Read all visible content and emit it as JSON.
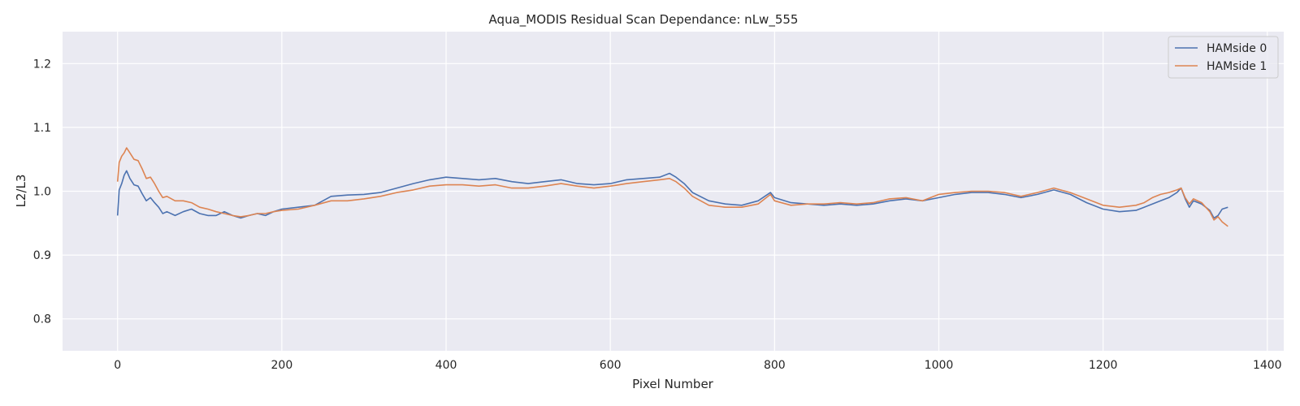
{
  "chart_data": {
    "type": "line",
    "title": "Aqua_MODIS Residual Scan Dependance: nLw_555",
    "xlabel": "Pixel Number",
    "ylabel": "L2/L3",
    "xlim": [
      -67,
      1420
    ],
    "ylim": [
      0.75,
      1.25
    ],
    "xticks": [
      0,
      200,
      400,
      600,
      800,
      1000,
      1200,
      1400
    ],
    "xtick_labels": [
      "0",
      "200",
      "400",
      "600",
      "800",
      "1000",
      "1200",
      "1400"
    ],
    "yticks": [
      0.8,
      0.9,
      1.0,
      1.1,
      1.2
    ],
    "ytick_labels": [
      "0.8",
      "0.9",
      "1.0",
      "1.1",
      "1.2"
    ],
    "grid": true,
    "legend_position": "top-right",
    "series": [
      {
        "name": "HAMside 0",
        "color": "#4c72b0",
        "x": [
          0,
          2,
          5,
          8,
          11,
          15,
          20,
          25,
          30,
          35,
          40,
          45,
          50,
          55,
          60,
          70,
          80,
          90,
          100,
          110,
          120,
          130,
          140,
          150,
          160,
          170,
          180,
          190,
          200,
          220,
          240,
          260,
          280,
          300,
          320,
          340,
          360,
          380,
          400,
          420,
          440,
          460,
          480,
          500,
          520,
          540,
          560,
          580,
          600,
          620,
          640,
          660,
          672,
          680,
          690,
          700,
          720,
          740,
          760,
          780,
          795,
          800,
          820,
          840,
          860,
          880,
          900,
          920,
          940,
          960,
          980,
          1000,
          1020,
          1040,
          1060,
          1080,
          1100,
          1120,
          1140,
          1160,
          1180,
          1200,
          1220,
          1240,
          1250,
          1260,
          1270,
          1280,
          1290,
          1295,
          1300,
          1305,
          1310,
          1320,
          1330,
          1335,
          1340,
          1345,
          1352
        ],
        "y": [
          0.962,
          1.002,
          1.012,
          1.025,
          1.032,
          1.02,
          1.01,
          1.008,
          0.996,
          0.985,
          0.99,
          0.982,
          0.975,
          0.965,
          0.968,
          0.962,
          0.968,
          0.972,
          0.965,
          0.962,
          0.962,
          0.968,
          0.962,
          0.958,
          0.962,
          0.965,
          0.962,
          0.968,
          0.972,
          0.975,
          0.978,
          0.992,
          0.994,
          0.995,
          0.998,
          1.005,
          1.012,
          1.018,
          1.022,
          1.02,
          1.018,
          1.02,
          1.015,
          1.012,
          1.015,
          1.018,
          1.012,
          1.01,
          1.012,
          1.018,
          1.02,
          1.022,
          1.028,
          1.022,
          1.012,
          0.998,
          0.985,
          0.98,
          0.978,
          0.985,
          0.998,
          0.99,
          0.982,
          0.98,
          0.978,
          0.98,
          0.978,
          0.98,
          0.985,
          0.988,
          0.985,
          0.99,
          0.995,
          0.998,
          0.998,
          0.995,
          0.99,
          0.995,
          1.002,
          0.995,
          0.982,
          0.972,
          0.968,
          0.97,
          0.975,
          0.98,
          0.985,
          0.99,
          0.998,
          1.005,
          0.988,
          0.975,
          0.985,
          0.98,
          0.97,
          0.958,
          0.962,
          0.972,
          0.975
        ]
      },
      {
        "name": "HAMside 1",
        "color": "#dd8452",
        "x": [
          0,
          2,
          5,
          8,
          11,
          15,
          20,
          25,
          30,
          35,
          40,
          45,
          50,
          55,
          60,
          70,
          80,
          90,
          100,
          110,
          120,
          130,
          140,
          150,
          160,
          170,
          180,
          190,
          200,
          220,
          240,
          260,
          280,
          300,
          320,
          340,
          360,
          380,
          400,
          420,
          440,
          460,
          480,
          500,
          520,
          540,
          560,
          580,
          600,
          620,
          640,
          660,
          672,
          680,
          690,
          700,
          720,
          740,
          760,
          780,
          795,
          800,
          820,
          840,
          860,
          880,
          900,
          920,
          940,
          960,
          980,
          1000,
          1020,
          1040,
          1060,
          1080,
          1100,
          1120,
          1140,
          1160,
          1180,
          1200,
          1220,
          1240,
          1250,
          1260,
          1270,
          1280,
          1290,
          1295,
          1300,
          1305,
          1310,
          1320,
          1330,
          1335,
          1340,
          1345,
          1352
        ],
        "y": [
          1.015,
          1.045,
          1.055,
          1.06,
          1.068,
          1.06,
          1.05,
          1.048,
          1.035,
          1.02,
          1.022,
          1.012,
          1.0,
          0.99,
          0.992,
          0.985,
          0.985,
          0.982,
          0.975,
          0.972,
          0.968,
          0.965,
          0.962,
          0.96,
          0.962,
          0.965,
          0.965,
          0.968,
          0.97,
          0.972,
          0.978,
          0.985,
          0.985,
          0.988,
          0.992,
          0.998,
          1.002,
          1.008,
          1.01,
          1.01,
          1.008,
          1.01,
          1.005,
          1.005,
          1.008,
          1.012,
          1.008,
          1.005,
          1.008,
          1.012,
          1.015,
          1.018,
          1.02,
          1.015,
          1.005,
          0.992,
          0.978,
          0.975,
          0.975,
          0.98,
          0.995,
          0.985,
          0.978,
          0.98,
          0.98,
          0.982,
          0.98,
          0.982,
          0.988,
          0.99,
          0.985,
          0.995,
          0.998,
          1.0,
          1.0,
          0.998,
          0.992,
          0.998,
          1.005,
          0.998,
          0.988,
          0.978,
          0.975,
          0.978,
          0.982,
          0.99,
          0.995,
          0.998,
          1.002,
          1.005,
          0.99,
          0.98,
          0.988,
          0.982,
          0.968,
          0.955,
          0.96,
          0.952,
          0.945
        ]
      }
    ]
  }
}
